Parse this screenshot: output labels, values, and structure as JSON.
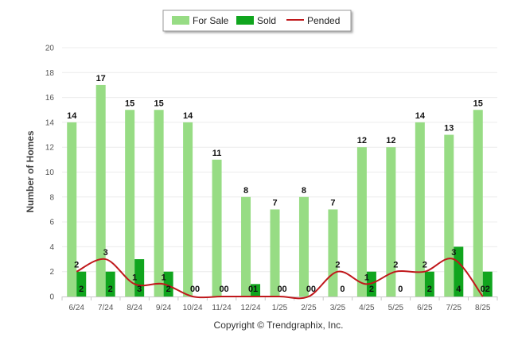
{
  "chart_data": {
    "type": "bar",
    "categories": [
      "6/24",
      "7/24",
      "8/24",
      "9/24",
      "10/24",
      "11/24",
      "12/24",
      "1/25",
      "2/25",
      "3/25",
      "4/25",
      "5/25",
      "6/25",
      "7/25",
      "8/25"
    ],
    "series": [
      {
        "name": "For Sale",
        "type": "bar",
        "color": "#97dc84",
        "values": [
          14,
          17,
          15,
          15,
          14,
          11,
          8,
          7,
          8,
          7,
          12,
          12,
          14,
          13,
          15
        ]
      },
      {
        "name": "Sold",
        "type": "bar",
        "color": "#10a51e",
        "values": [
          2,
          2,
          3,
          2,
          0,
          0,
          1,
          0,
          0,
          0,
          2,
          0,
          2,
          4,
          2
        ]
      },
      {
        "name": "Pended",
        "type": "line",
        "color": "#c0181c",
        "values": [
          2,
          3,
          1,
          1,
          0,
          0,
          0,
          0,
          0,
          2,
          1,
          2,
          2,
          3,
          0
        ]
      }
    ],
    "ylabel": "Number of Homes",
    "xlabel": "",
    "ylim": [
      0,
      20
    ],
    "yticks": [
      0,
      2,
      4,
      6,
      8,
      10,
      12,
      14,
      16,
      18,
      20
    ],
    "grid": true,
    "legend_position": "top-center"
  },
  "footer": {
    "credit": "Copyright © Trendgraphix, Inc."
  }
}
